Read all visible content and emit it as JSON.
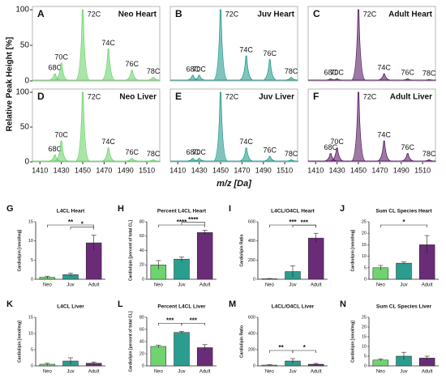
{
  "chart_data": [
    {
      "type": "spectrum",
      "letter": "A",
      "title": "Neo Heart",
      "color": "#6fd46f",
      "ylabel": "Relative Peak Height [%]",
      "xlim": [
        1403,
        1522
      ],
      "ylim": [
        0,
        100
      ],
      "yticks": [
        0,
        50,
        100
      ],
      "peaks": {
        "labels": [
          "68C",
          "70C",
          "72C",
          "74C",
          "76C",
          "78C"
        ],
        "x": [
          1424,
          1430,
          1450,
          1474,
          1496,
          1516
        ],
        "values": [
          10,
          25,
          100,
          45,
          15,
          5
        ]
      }
    },
    {
      "type": "spectrum",
      "letter": "B",
      "title": "Juv Heart",
      "color": "#2a9d8f",
      "xlim": [
        1403,
        1522
      ],
      "ylim": [
        0,
        100
      ],
      "peaks": {
        "labels": [
          "68C",
          "70C",
          "72C",
          "74C",
          "76C",
          "78C"
        ],
        "x": [
          1424,
          1430,
          1450,
          1474,
          1496,
          1516
        ],
        "values": [
          8,
          8,
          100,
          35,
          30,
          5
        ]
      }
    },
    {
      "type": "spectrum",
      "letter": "C",
      "title": "Adult Heart",
      "color": "#5a1f66",
      "xlim": [
        1403,
        1522
      ],
      "ylim": [
        0,
        100
      ],
      "peaks": {
        "labels": [
          "68C",
          "70C",
          "72C",
          "74C",
          "76C",
          "78C"
        ],
        "x": [
          1424,
          1430,
          1450,
          1474,
          1496,
          1516
        ],
        "values": [
          3,
          3,
          100,
          10,
          3,
          2
        ]
      }
    },
    {
      "type": "spectrum",
      "letter": "D",
      "title": "Neo Liver",
      "color": "#6fd46f",
      "xlim": [
        1403,
        1522
      ],
      "ylim": [
        0,
        100
      ],
      "yticks": [
        0,
        50,
        100
      ],
      "xticks": [
        1410,
        1430,
        1450,
        1470,
        1490,
        1510
      ],
      "peaks": {
        "labels": [
          "68C",
          "70C",
          "72C",
          "74C",
          "76C",
          "78C"
        ],
        "x": [
          1424,
          1430,
          1450,
          1474,
          1496,
          1516
        ],
        "values": [
          10,
          30,
          100,
          20,
          5,
          3
        ]
      }
    },
    {
      "type": "spectrum",
      "letter": "E",
      "title": "Juv Liver",
      "color": "#2a9d8f",
      "xlim": [
        1403,
        1522
      ],
      "ylim": [
        0,
        100
      ],
      "xticks": [
        1410,
        1430,
        1450,
        1470,
        1490,
        1510
      ],
      "xlabel": "m/z [Da]",
      "peaks": {
        "labels": [
          "68C",
          "70C",
          "72C",
          "74C",
          "76C",
          "78C"
        ],
        "x": [
          1424,
          1430,
          1450,
          1474,
          1496,
          1516
        ],
        "values": [
          5,
          5,
          100,
          20,
          8,
          3
        ]
      }
    },
    {
      "type": "spectrum",
      "letter": "F",
      "title": "Adult Liver",
      "color": "#5a1f66",
      "xlim": [
        1403,
        1522
      ],
      "ylim": [
        0,
        100
      ],
      "xticks": [
        1410,
        1430,
        1450,
        1470,
        1490,
        1510
      ],
      "peaks": {
        "labels": [
          "68C",
          "70C",
          "72C",
          "74C",
          "76C",
          "78C"
        ],
        "x": [
          1424,
          1430,
          1450,
          1474,
          1496,
          1516
        ],
        "values": [
          12,
          20,
          100,
          30,
          12,
          3
        ]
      }
    },
    {
      "type": "bar",
      "letter": "G",
      "title": "L4CL Heart",
      "ylabel": "Cardiolipin [nmol/mg]",
      "categories": [
        "Neo",
        "Juv",
        "Adult"
      ],
      "values": [
        0.5,
        1.2,
        9.5
      ],
      "errors": [
        0.3,
        0.4,
        2
      ],
      "colors": [
        "#6fd46f",
        "#2a9d8f",
        "#6a2c77"
      ],
      "ylim": [
        0,
        15
      ],
      "yticks": [
        0,
        5,
        10,
        15
      ],
      "comparisons": [
        {
          "groups": [
            "Neo",
            "Adult"
          ],
          "label": "**"
        },
        {
          "groups": [
            "Juv",
            "Adult"
          ],
          "label": "*"
        }
      ]
    },
    {
      "type": "bar",
      "letter": "H",
      "title": "Percent L4CL Heart",
      "ylabel": "Cardiolipin [percent of total CL]",
      "categories": [
        "Neo",
        "Juv",
        "Adult"
      ],
      "values": [
        20,
        28,
        65
      ],
      "errors": [
        6,
        3,
        3
      ],
      "colors": [
        "#6fd46f",
        "#2a9d8f",
        "#6a2c77"
      ],
      "ylim": [
        0,
        80
      ],
      "yticks": [
        0,
        20,
        40,
        60,
        80
      ],
      "comparisons": [
        {
          "groups": [
            "Neo",
            "Adult"
          ],
          "label": "****"
        },
        {
          "groups": [
            "Juv",
            "Adult"
          ],
          "label": "****"
        }
      ]
    },
    {
      "type": "bar",
      "letter": "I",
      "title": "L4CL/O4CL Heart",
      "ylabel": "Cardiolipin Ratio",
      "categories": [
        "Neo",
        "Juv",
        "Adult"
      ],
      "values": [
        5,
        80,
        430
      ],
      "errors": [
        3,
        60,
        50
      ],
      "colors": [
        "#6fd46f",
        "#2a9d8f",
        "#6a2c77"
      ],
      "ylim": [
        0,
        600
      ],
      "yticks": [
        0,
        200,
        400,
        600
      ],
      "comparisons": [
        {
          "groups": [
            "Neo",
            "Adult"
          ],
          "label": "***"
        },
        {
          "groups": [
            "Juv",
            "Adult"
          ],
          "label": "***"
        }
      ]
    },
    {
      "type": "bar",
      "letter": "J",
      "title": "Sum CL Species Heart",
      "ylabel": "Cardiolipin [nmol/mg]",
      "categories": [
        "Neo",
        "Juv",
        "Adult"
      ],
      "values": [
        5,
        7,
        15
      ],
      "errors": [
        1,
        0.5,
        4
      ],
      "colors": [
        "#6fd46f",
        "#2a9d8f",
        "#6a2c77"
      ],
      "ylim": [
        0,
        25
      ],
      "yticks": [
        0,
        5,
        10,
        15,
        20,
        25
      ],
      "comparisons": [
        {
          "groups": [
            "Neo",
            "Adult"
          ],
          "label": "*"
        }
      ]
    },
    {
      "type": "bar",
      "letter": "K",
      "title": "L4CL Liver",
      "ylabel": "Cardiolipin [nmol/mg]",
      "categories": [
        "Neo",
        "Juv",
        "Adult"
      ],
      "values": [
        0.5,
        1.5,
        0.8
      ],
      "errors": [
        0.3,
        1,
        0.4
      ],
      "colors": [
        "#6fd46f",
        "#2a9d8f",
        "#6a2c77"
      ],
      "ylim": [
        0,
        15
      ],
      "yticks": [
        0,
        5,
        10,
        15
      ]
    },
    {
      "type": "bar",
      "letter": "L",
      "title": "Percent L4CL Liver",
      "ylabel": "Cardiolipin [percent of total CL]",
      "categories": [
        "Neo",
        "Juv",
        "Adult"
      ],
      "values": [
        32,
        55,
        30
      ],
      "errors": [
        2,
        2,
        5
      ],
      "colors": [
        "#6fd46f",
        "#2a9d8f",
        "#6a2c77"
      ],
      "ylim": [
        0,
        80
      ],
      "yticks": [
        0,
        20,
        40,
        60,
        80
      ],
      "comparisons": [
        {
          "groups": [
            "Neo",
            "Juv"
          ],
          "label": "***"
        },
        {
          "groups": [
            "Juv",
            "Adult"
          ],
          "label": "***"
        }
      ]
    },
    {
      "type": "bar",
      "letter": "M",
      "title": "L4CL/O4CL Liver",
      "ylabel": "Cardiolipin Ratio",
      "categories": [
        "Neo",
        "Juv",
        "Adult"
      ],
      "values": [
        10,
        60,
        20
      ],
      "errors": [
        5,
        30,
        10
      ],
      "colors": [
        "#6fd46f",
        "#2a9d8f",
        "#6a2c77"
      ],
      "ylim": [
        0,
        600
      ],
      "yticks": [
        0,
        200,
        400,
        600
      ],
      "comparisons": [
        {
          "groups": [
            "Neo",
            "Juv"
          ],
          "label": "**"
        },
        {
          "groups": [
            "Juv",
            "Adult"
          ],
          "label": "*"
        }
      ]
    },
    {
      "type": "bar",
      "letter": "N",
      "title": "Sum CL Species Liver",
      "ylabel": "Cardiolipin [nmol/mg]",
      "categories": [
        "Neo",
        "Juv",
        "Adult"
      ],
      "values": [
        3,
        5,
        4
      ],
      "errors": [
        0.5,
        2,
        1
      ],
      "colors": [
        "#6fd46f",
        "#2a9d8f",
        "#6a2c77"
      ],
      "ylim": [
        0,
        25
      ],
      "yticks": [
        0,
        5,
        10,
        15,
        20,
        25
      ]
    }
  ]
}
